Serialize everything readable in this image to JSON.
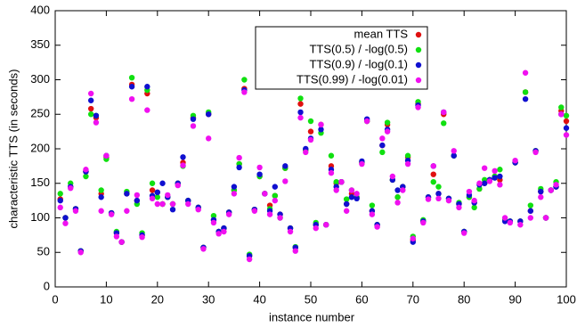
{
  "chart_data": {
    "type": "scatter",
    "xlabel": "instance number",
    "ylabel": "characteristic TTS (in seconds)",
    "xlim": [
      0,
      100
    ],
    "xticks": [
      0,
      10,
      20,
      30,
      40,
      50,
      60,
      70,
      80,
      90,
      100
    ],
    "ylim": [
      0,
      400
    ],
    "yticks": [
      0,
      50,
      100,
      150,
      200,
      250,
      300,
      350,
      400
    ],
    "legend": "upper right",
    "x": [
      1,
      2,
      3,
      4,
      5,
      6,
      7,
      8,
      9,
      10,
      11,
      12,
      13,
      14,
      15,
      16,
      17,
      18,
      19,
      20,
      21,
      22,
      23,
      24,
      25,
      26,
      27,
      28,
      29,
      30,
      31,
      32,
      33,
      34,
      35,
      36,
      37,
      38,
      39,
      40,
      41,
      42,
      43,
      44,
      45,
      46,
      47,
      48,
      49,
      50,
      51,
      52,
      53,
      54,
      55,
      56,
      57,
      58,
      59,
      60,
      61,
      62,
      63,
      64,
      65,
      66,
      67,
      68,
      69,
      70,
      71,
      72,
      73,
      74,
      75,
      76,
      77,
      78,
      79,
      80,
      81,
      82,
      83,
      84,
      85,
      86,
      87,
      88,
      89,
      90,
      91,
      92,
      93,
      94,
      95,
      96,
      97,
      98,
      99,
      100
    ],
    "series": [
      {
        "name": "mean TTS",
        "color": "#e01010",
        "values": [
          127,
          100,
          145,
          113,
          52,
          167,
          258,
          245,
          135,
          188,
          107,
          78,
          65,
          135,
          293,
          125,
          75,
          280,
          140,
          137,
          120,
          130,
          120,
          150,
          180,
          125,
          245,
          115,
          57,
          250,
          97,
          80,
          85,
          108,
          140,
          178,
          287,
          45,
          112,
          160,
          135,
          118,
          132,
          105,
          172,
          85,
          57,
          265,
          198,
          225,
          90,
          235,
          90,
          175,
          150,
          152,
          120,
          135,
          130,
          180,
          240,
          110,
          90,
          205,
          235,
          155,
          130,
          145,
          188,
          68,
          265,
          95,
          130,
          163,
          135,
          250,
          128,
          190,
          120,
          80,
          130,
          122,
          142,
          150,
          155,
          160,
          155,
          97,
          95,
          180,
          95,
          282,
          110,
          197,
          138,
          100,
          140,
          145,
          255,
          240
        ]
      },
      {
        "name": "TTS(0.5) / -log(0.5)",
        "color": "#10e010",
        "values": [
          135,
          100,
          150,
          113,
          52,
          160,
          250,
          248,
          140,
          185,
          107,
          80,
          65,
          138,
          303,
          120,
          78,
          285,
          150,
          130,
          120,
          130,
          120,
          150,
          175,
          125,
          248,
          115,
          57,
          253,
          103,
          80,
          85,
          108,
          140,
          178,
          300,
          47,
          112,
          160,
          135,
          113,
          132,
          100,
          172,
          85,
          58,
          273,
          198,
          240,
          93,
          223,
          90,
          190,
          152,
          152,
          127,
          140,
          130,
          180,
          240,
          118,
          90,
          195,
          238,
          155,
          130,
          145,
          190,
          73,
          268,
          97,
          130,
          152,
          145,
          237,
          128,
          190,
          122,
          80,
          130,
          115,
          142,
          155,
          155,
          160,
          170,
          97,
          95,
          180,
          95,
          282,
          118,
          197,
          142,
          100,
          140,
          152,
          260,
          248
        ]
      },
      {
        "name": "TTS(0.9) / -log(0.1)",
        "color": "#1010d0",
        "values": [
          125,
          100,
          145,
          113,
          52,
          167,
          270,
          248,
          130,
          190,
          107,
          78,
          65,
          135,
          290,
          125,
          75,
          290,
          132,
          137,
          150,
          130,
          112,
          150,
          188,
          125,
          243,
          115,
          57,
          250,
          97,
          80,
          85,
          108,
          145,
          173,
          285,
          45,
          112,
          163,
          135,
          110,
          145,
          105,
          175,
          85,
          57,
          253,
          200,
          215,
          90,
          228,
          90,
          170,
          145,
          152,
          120,
          130,
          128,
          182,
          243,
          110,
          90,
          205,
          228,
          155,
          140,
          145,
          183,
          65,
          263,
          95,
          130,
          175,
          135,
          253,
          128,
          190,
          120,
          80,
          133,
          122,
          148,
          150,
          155,
          158,
          160,
          95,
          95,
          180,
          95,
          272,
          110,
          197,
          138,
          100,
          140,
          145,
          250,
          230
        ]
      },
      {
        "name": "TTS(0.99) / -log(0.01)",
        "color": "#f010f0",
        "values": [
          115,
          92,
          143,
          110,
          50,
          170,
          280,
          238,
          110,
          190,
          105,
          73,
          65,
          110,
          272,
          133,
          72,
          256,
          128,
          120,
          120,
          133,
          120,
          147,
          176,
          120,
          233,
          112,
          55,
          215,
          93,
          77,
          80,
          105,
          135,
          187,
          282,
          40,
          110,
          173,
          135,
          105,
          125,
          100,
          153,
          80,
          52,
          245,
          195,
          213,
          85,
          235,
          90,
          165,
          140,
          152,
          110,
          140,
          135,
          178,
          240,
          105,
          87,
          215,
          225,
          160,
          122,
          140,
          178,
          70,
          260,
          93,
          127,
          175,
          128,
          253,
          125,
          197,
          115,
          78,
          138,
          125,
          150,
          172,
          153,
          168,
          148,
          100,
          93,
          183,
          90,
          310,
          100,
          195,
          130,
          100,
          140,
          148,
          250,
          220
        ]
      }
    ]
  }
}
